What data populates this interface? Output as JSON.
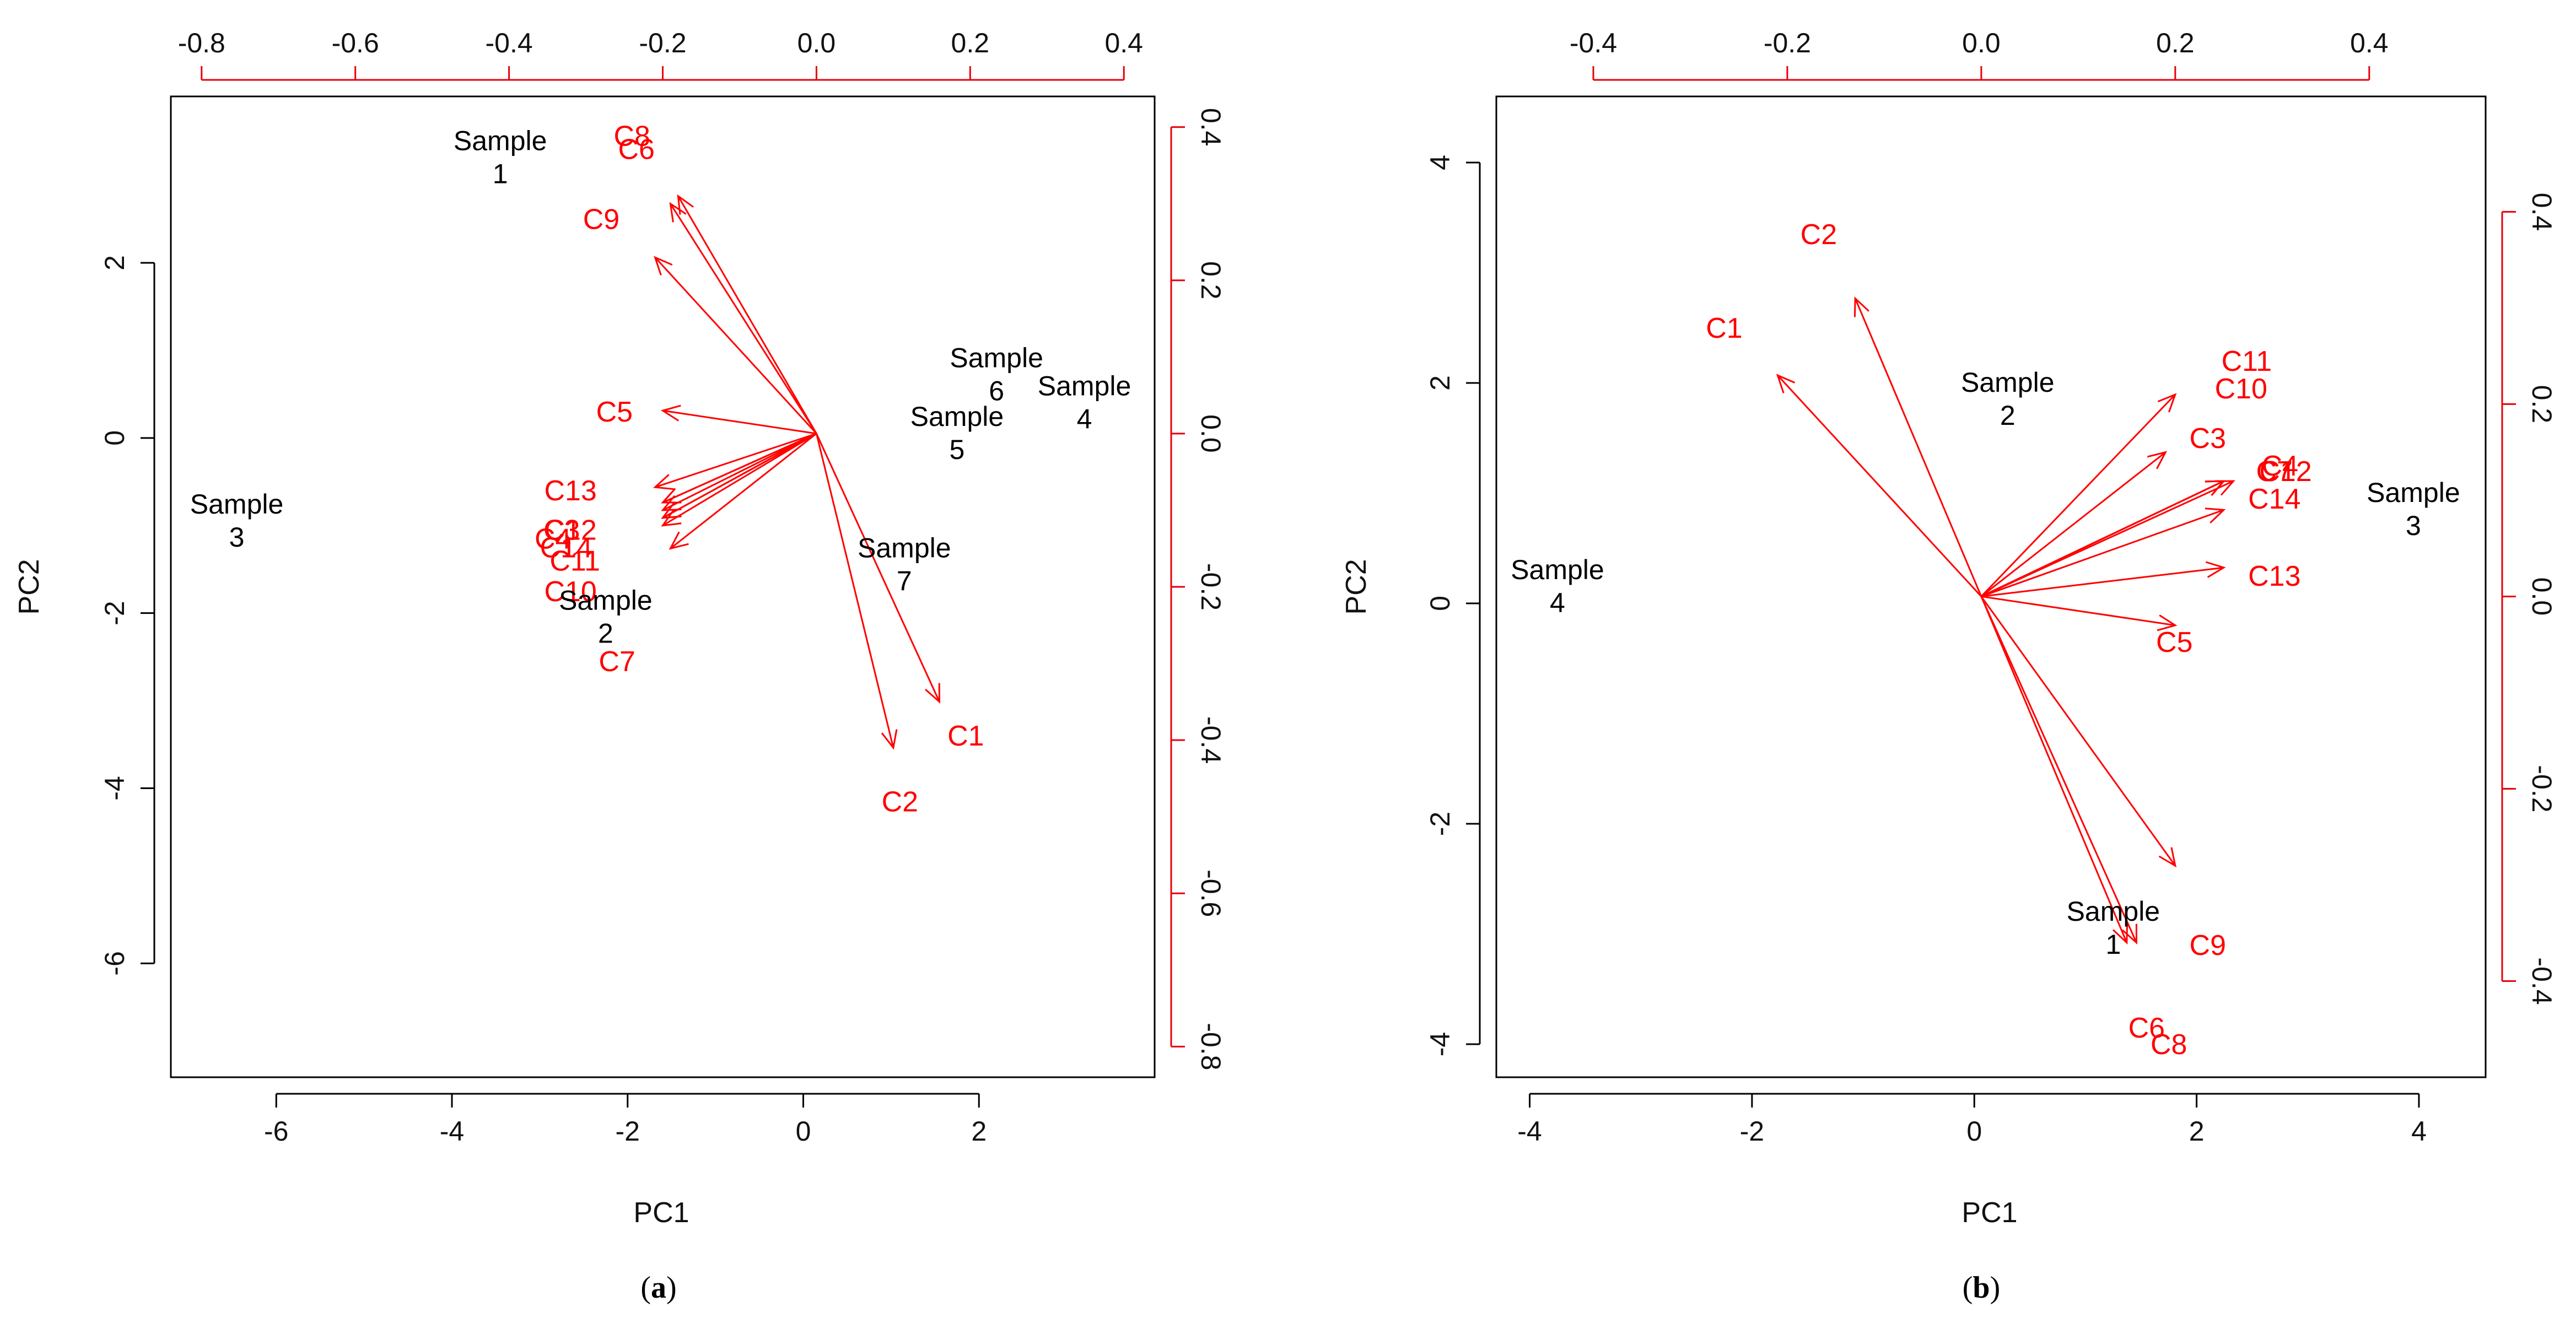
{
  "chart_data": [
    {
      "type": "scatter",
      "subtype": "biplot",
      "panel_label_open": "(",
      "panel_label_letter": "a",
      "panel_label_close": ")",
      "xlabel": "PC1",
      "ylabel": "PC2",
      "xlim": [
        -7.2,
        4.0
      ],
      "ylim": [
        -7.3,
        3.9
      ],
      "x_ticks": [
        -6,
        -4,
        -2,
        0,
        2
      ],
      "y_ticks": [
        -6,
        -4,
        -2,
        0,
        2
      ],
      "top_ticks": [
        -0.8,
        -0.6,
        -0.4,
        -0.2,
        0.0,
        0.2,
        0.4
      ],
      "right_ticks": [
        -0.8,
        -0.6,
        -0.4,
        -0.2,
        0.0,
        0.2,
        0.4
      ],
      "loading_xlim": [
        -0.84,
        0.44
      ],
      "loading_ylim": [
        -0.84,
        0.44
      ],
      "samples": [
        {
          "line1": "Sample",
          "line2": "1",
          "x": -3.45,
          "y": 3.2
        },
        {
          "line1": "Sample",
          "line2": "2",
          "x": -2.25,
          "y": -2.05
        },
        {
          "line1": "Sample",
          "line2": "3",
          "x": -6.45,
          "y": -0.95
        },
        {
          "line1": "Sample",
          "line2": "4",
          "x": 3.2,
          "y": 0.4
        },
        {
          "line1": "Sample",
          "line2": "5",
          "x": 1.75,
          "y": 0.05
        },
        {
          "line1": "Sample",
          "line2": "6",
          "x": 2.2,
          "y": 0.72
        },
        {
          "line1": "Sample",
          "line2": "7",
          "x": 1.15,
          "y": -1.45
        }
      ],
      "loadings": [
        {
          "name": "C1",
          "x": 0.16,
          "y": -0.35,
          "lx": 1.85,
          "ly": -3.4
        },
        {
          "name": "C2",
          "x": 0.1,
          "y": -0.41,
          "lx": 1.1,
          "ly": -4.15
        },
        {
          "name": "C3",
          "x": -0.2,
          "y": -0.09,
          "lx": -2.75,
          "ly": -1.05
        },
        {
          "name": "C4",
          "x": -0.2,
          "y": -0.1,
          "lx": -2.85,
          "ly": -1.15
        },
        {
          "name": "C5",
          "x": -0.2,
          "y": 0.03,
          "lx": -2.15,
          "ly": 0.3
        },
        {
          "name": "C6",
          "x": -0.19,
          "y": 0.3,
          "lx": -1.9,
          "ly": 3.3
        },
        {
          "name": "C7",
          "x": -0.19,
          "y": -0.15,
          "lx": -2.12,
          "ly": -2.55
        },
        {
          "name": "C8",
          "x": -0.18,
          "y": 0.31,
          "lx": -1.95,
          "ly": 3.45
        },
        {
          "name": "C9",
          "x": -0.21,
          "y": 0.23,
          "lx": -2.3,
          "ly": 2.5
        },
        {
          "name": "C10",
          "x": -0.2,
          "y": -0.11,
          "lx": -2.65,
          "ly": -1.75
        },
        {
          "name": "C11",
          "x": -0.2,
          "y": -0.12,
          "lx": -2.6,
          "ly": -1.4
        },
        {
          "name": "C12",
          "x": -0.2,
          "y": -0.09,
          "lx": -2.65,
          "ly": -1.05
        },
        {
          "name": "C13",
          "x": -0.21,
          "y": -0.07,
          "lx": -2.65,
          "ly": -0.6
        },
        {
          "name": "C14",
          "x": -0.2,
          "y": -0.11,
          "lx": -2.7,
          "ly": -1.25
        }
      ]
    },
    {
      "type": "scatter",
      "subtype": "biplot",
      "panel_label_open": "(",
      "panel_label_letter": "b",
      "panel_label_close": ")",
      "xlabel": "PC1",
      "ylabel": "PC2",
      "xlim": [
        -4.3,
        4.6
      ],
      "ylim": [
        -4.3,
        4.6
      ],
      "x_ticks": [
        -4,
        -2,
        0,
        2,
        4
      ],
      "y_ticks": [
        -4,
        -2,
        0,
        2,
        4
      ],
      "top_ticks": [
        -0.4,
        -0.2,
        0.0,
        0.2,
        0.4
      ],
      "right_ticks": [
        -0.4,
        -0.2,
        0.0,
        0.2,
        0.4
      ],
      "loading_xlim": [
        -0.5,
        0.52
      ],
      "loading_ylim": [
        -0.5,
        0.52
      ],
      "samples": [
        {
          "line1": "Sample",
          "line2": "1",
          "x": 1.25,
          "y": -2.95
        },
        {
          "line1": "Sample",
          "line2": "2",
          "x": 0.3,
          "y": 1.85
        },
        {
          "line1": "Sample",
          "line2": "3",
          "x": 3.95,
          "y": 0.85
        },
        {
          "line1": "Sample",
          "line2": "4",
          "x": -3.75,
          "y": 0.15
        }
      ],
      "loadings": [
        {
          "name": "C1",
          "x": -0.21,
          "y": 0.23,
          "lx": -2.25,
          "ly": 2.5
        },
        {
          "name": "C2",
          "x": -0.13,
          "y": 0.31,
          "lx": -1.4,
          "ly": 3.35
        },
        {
          "name": "C3",
          "x": 0.19,
          "y": 0.15,
          "lx": 2.1,
          "ly": 1.5
        },
        {
          "name": "C4",
          "x": 0.26,
          "y": 0.12,
          "lx": 2.75,
          "ly": 1.25
        },
        {
          "name": "C5",
          "x": 0.2,
          "y": -0.03,
          "lx": 1.8,
          "ly": -0.35
        },
        {
          "name": "C6",
          "x": 0.16,
          "y": -0.36,
          "lx": 1.55,
          "ly": -3.85
        },
        {
          "name": "C7",
          "x": 0.25,
          "y": 0.12,
          "lx": 2.7,
          "ly": 1.2
        },
        {
          "name": "C8",
          "x": 0.15,
          "y": -0.36,
          "lx": 1.75,
          "ly": -4.0
        },
        {
          "name": "C9",
          "x": 0.2,
          "y": -0.28,
          "lx": 2.1,
          "ly": -3.1
        },
        {
          "name": "C10",
          "x": 0.25,
          "y": 0.12,
          "lx": 2.4,
          "ly": 1.95
        },
        {
          "name": "C11",
          "x": 0.2,
          "y": 0.21,
          "lx": 2.45,
          "ly": 2.2
        },
        {
          "name": "C12",
          "x": 0.25,
          "y": 0.12,
          "lx": 2.8,
          "ly": 1.2
        },
        {
          "name": "C13",
          "x": 0.25,
          "y": 0.03,
          "lx": 2.7,
          "ly": 0.25
        },
        {
          "name": "C14",
          "x": 0.25,
          "y": 0.09,
          "lx": 2.7,
          "ly": 0.95
        }
      ]
    }
  ]
}
